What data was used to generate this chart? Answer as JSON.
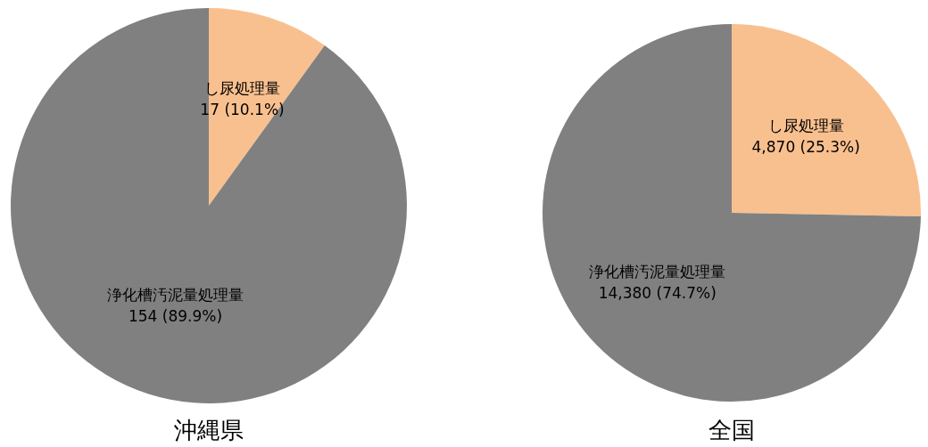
{
  "chart_data": [
    {
      "type": "pie",
      "title": "沖縄県",
      "categories": [
        "し尿処理量",
        "浄化槽汚泥量処理量"
      ],
      "values": [
        17,
        154
      ],
      "colors": [
        "#f9c08f",
        "#808080"
      ],
      "value_labels": [
        "17 (10.1%)",
        "154 (89.9%)"
      ]
    },
    {
      "type": "pie",
      "title": "全国",
      "categories": [
        "し尿処理量",
        "浄化槽汚泥量処理量"
      ],
      "values": [
        4870,
        14380
      ],
      "colors": [
        "#f9c08f",
        "#808080"
      ],
      "value_labels": [
        "4,870 (25.3%)",
        "14,380 (74.7%)"
      ]
    }
  ]
}
